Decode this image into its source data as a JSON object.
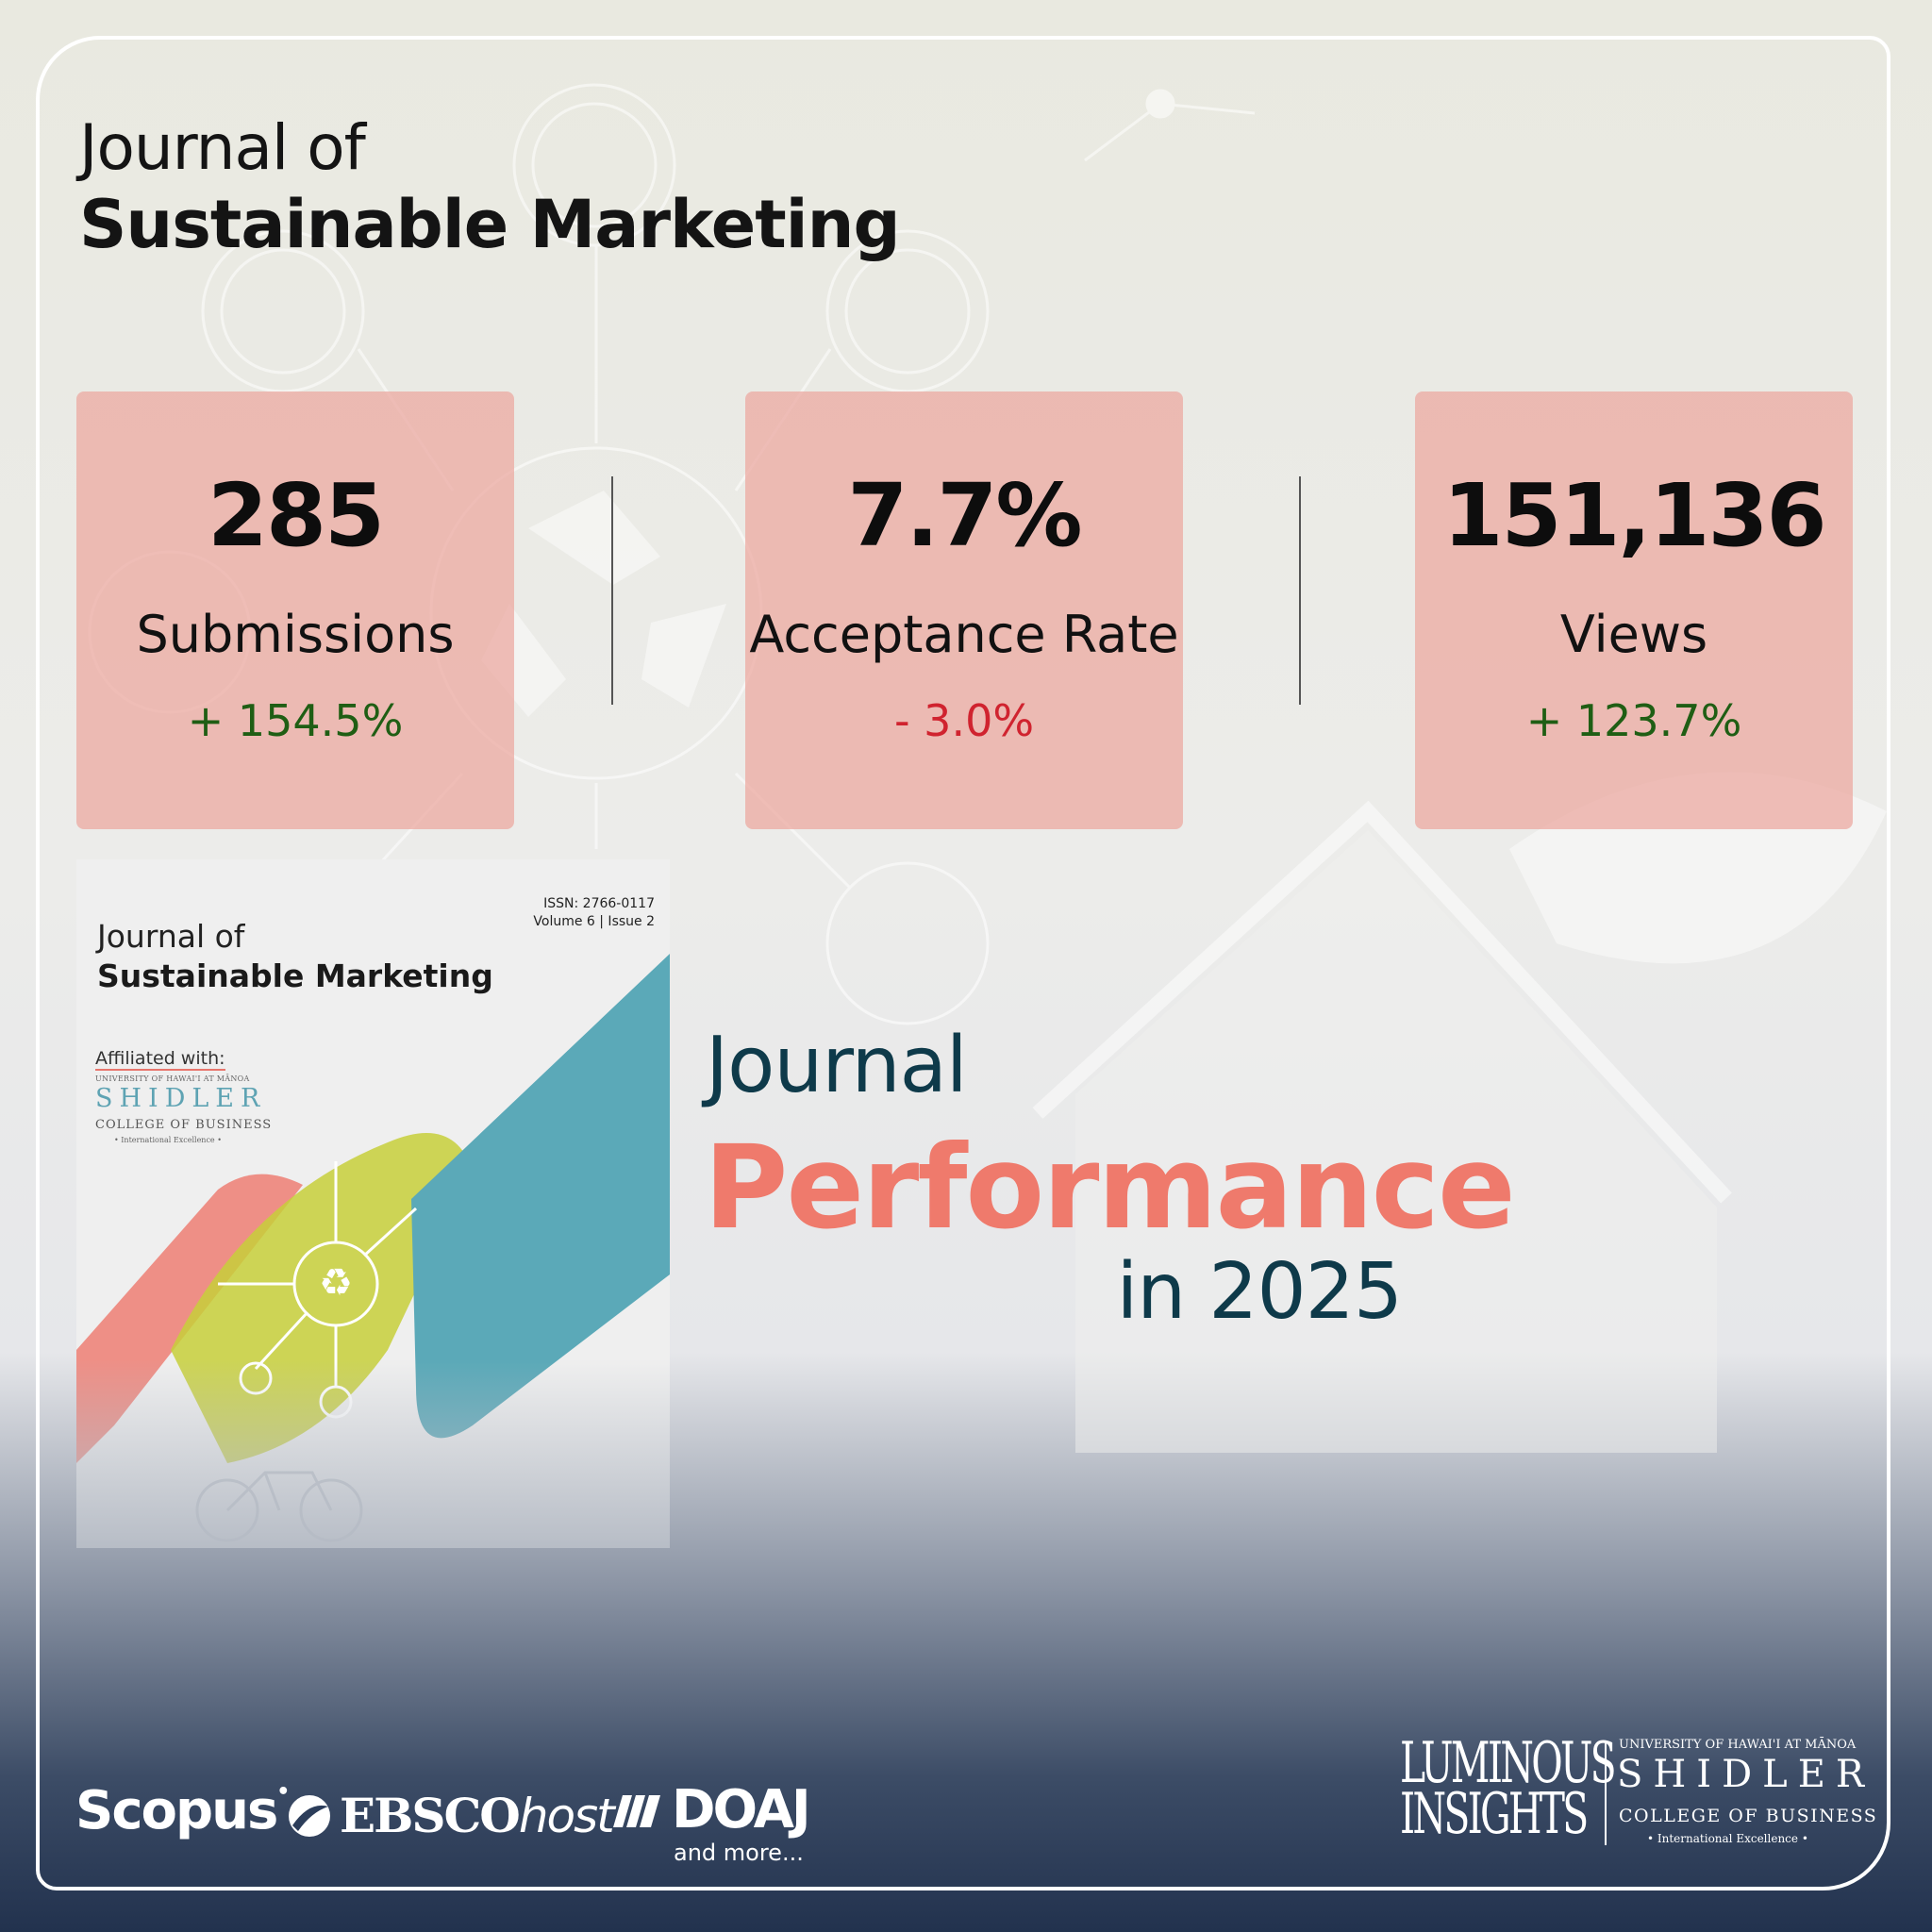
{
  "header": {
    "title_line1": "Journal of",
    "title_line2": "Sustainable Marketing"
  },
  "stats": [
    {
      "value": "285",
      "label": "Submissions",
      "change": "+ 154.5%",
      "trend": "up"
    },
    {
      "value": "7.7%",
      "label": "Acceptance Rate",
      "change": "- 3.0%",
      "trend": "down"
    },
    {
      "value": "151,136",
      "label": "Views",
      "change": "+ 123.7%",
      "trend": "up"
    }
  ],
  "cover": {
    "issn": "ISSN: 2766-0117",
    "volume_issue": "Volume  6 | Issue 2",
    "title_line1": "Journal of",
    "title_line2": "Sustainable Marketing",
    "affiliated": "Affiliated with:",
    "university": "UNIVERSITY OF HAWAI'I AT MĀNOA",
    "school": "SHIDLER",
    "college": "COLLEGE OF BUSINESS",
    "tagline": "• International Excellence •"
  },
  "headline": {
    "line1": "Journal",
    "line2": "Performance",
    "line3": "in 2025"
  },
  "indexing": {
    "scopus": "Scopus",
    "ebsco_main": "EBSCO",
    "ebsco_host": "host",
    "doaj": "DOAJ",
    "more": "and more..."
  },
  "footer_logos": {
    "luminous_line1": "LUMINOUS",
    "luminous_line2": "INSIGHTS",
    "university": "UNIVERSITY OF HAWAI'I AT MĀNOA",
    "school": "SHIDLER",
    "college": "COLLEGE OF BUSINESS",
    "tagline": "• International Excellence •"
  },
  "colors": {
    "card": "#eca69e",
    "accent_coral": "#ef7a6c",
    "accent_teal": "#0e3a4a",
    "positive": "#1f5e14",
    "negative": "#d0232f",
    "footer_navy": "#22324e"
  }
}
